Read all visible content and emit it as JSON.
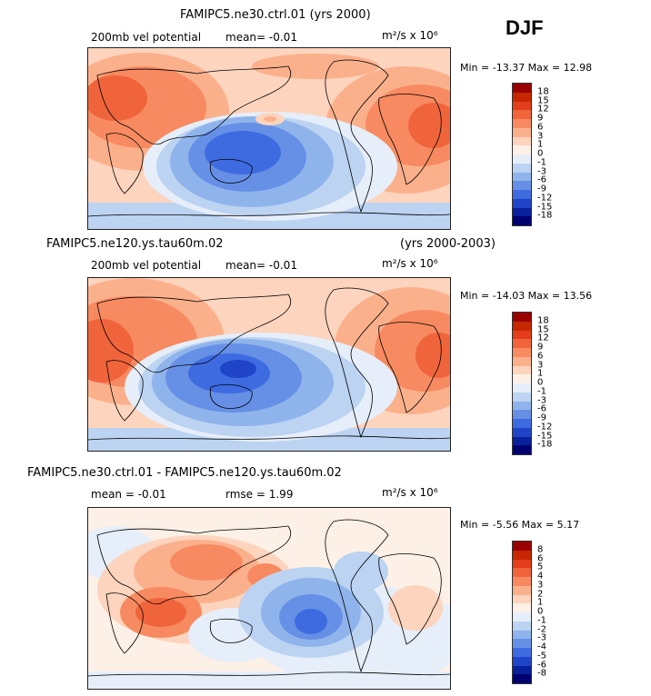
{
  "season": "DJF",
  "panels": [
    {
      "title": "FAMIPC5.ne30.ctrl.01 (yrs 2000)",
      "years": "",
      "variable": "200mb vel potential",
      "stat1": "mean=   -0.01",
      "stat2": "",
      "units": "m²/s x 10⁶",
      "minmax": "Min = -13.37 Max =  12.98",
      "levels": [
        "18",
        "15",
        "12",
        "9",
        "6",
        "3",
        "1",
        "0",
        "-1",
        "-3",
        "-6",
        "-9",
        "-12",
        "-15",
        "-18"
      ],
      "colors": [
        "#990000",
        "#c62600",
        "#e33d1c",
        "#f0643c",
        "#f78a60",
        "#fbb08c",
        "#fdd4bd",
        "#fdf0e6",
        "#e6eef9",
        "#bcd3f2",
        "#8fb4ec",
        "#6690e6",
        "#3e6be0",
        "#1f44c8",
        "#08209a",
        "#000070"
      ]
    },
    {
      "title": "FAMIPC5.ne120.ys.tau60m.02",
      "years": "(yrs 2000-2003)",
      "variable": "200mb vel potential",
      "stat1": "mean=   -0.01",
      "stat2": "",
      "units": "m²/s x 10⁶",
      "minmax": "Min = -14.03 Max =  13.56",
      "levels": [
        "18",
        "15",
        "12",
        "9",
        "6",
        "3",
        "1",
        "0",
        "-1",
        "-3",
        "-6",
        "-9",
        "-12",
        "-15",
        "-18"
      ],
      "colors": [
        "#990000",
        "#c62600",
        "#e33d1c",
        "#f0643c",
        "#f78a60",
        "#fbb08c",
        "#fdd4bd",
        "#fdf0e6",
        "#e6eef9",
        "#bcd3f2",
        "#8fb4ec",
        "#6690e6",
        "#3e6be0",
        "#1f44c8",
        "#08209a",
        "#000070"
      ]
    },
    {
      "title": "FAMIPC5.ne30.ctrl.01 - FAMIPC5.ne120.ys.tau60m.02",
      "years": "",
      "variable": "",
      "stat1": "mean =  -0.01",
      "stat2": "rmse =    1.99",
      "units": "m²/s x 10⁶",
      "minmax": "Min =  -5.56 Max =   5.17",
      "levels": [
        "8",
        "6",
        "5",
        "4",
        "3",
        "2",
        "1",
        "0",
        "-1",
        "-2",
        "-3",
        "-4",
        "-5",
        "-6",
        "-8"
      ],
      "colors": [
        "#990000",
        "#c62600",
        "#e33d1c",
        "#f0643c",
        "#f78a60",
        "#fbb08c",
        "#fdd4bd",
        "#fdf0e6",
        "#e6eef9",
        "#bcd3f2",
        "#8fb4ec",
        "#6690e6",
        "#3e6be0",
        "#1f44c8",
        "#08209a",
        "#000070"
      ]
    }
  ]
}
